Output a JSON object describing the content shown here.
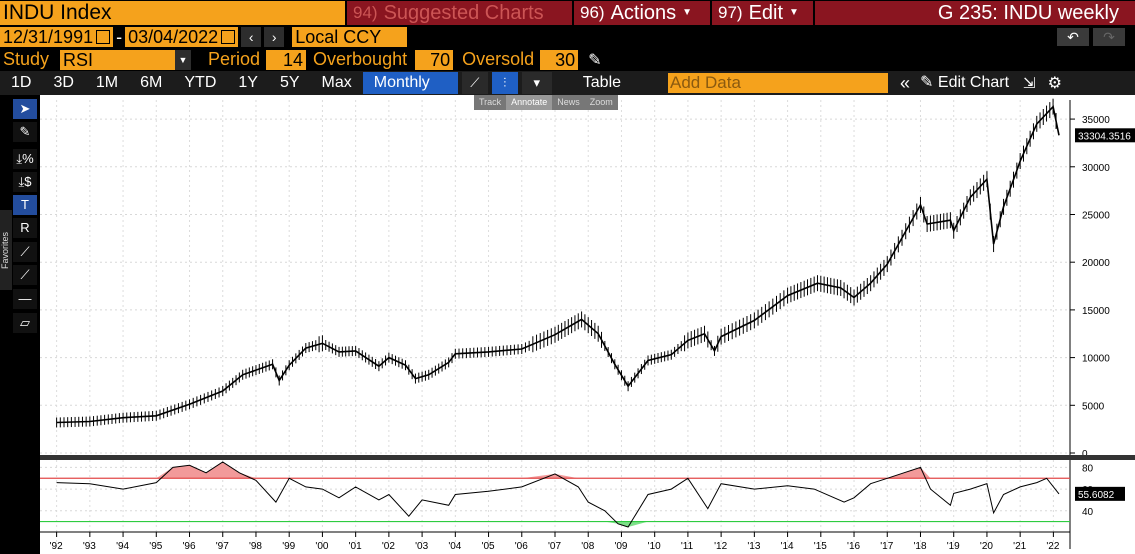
{
  "header": {
    "ticker": "INDU Index",
    "buttons": [
      {
        "num": "94)",
        "label": "Suggested Charts"
      },
      {
        "num": "96)",
        "label": "Actions"
      },
      {
        "num": "97)",
        "label": "Edit"
      }
    ],
    "page_title": "G 235: INDU weekly"
  },
  "dates": {
    "start": "12/31/1991",
    "sep": "-",
    "end": "03/04/2022",
    "currency": "Local CCY"
  },
  "study": {
    "label": "Study",
    "value": "RSI",
    "period_label": "Period",
    "period": "14",
    "overbought_label": "Overbought",
    "overbought": "70",
    "oversold_label": "Oversold",
    "oversold": "30"
  },
  "toolbar": {
    "ranges": [
      "1D",
      "3D",
      "1M",
      "6M",
      "YTD",
      "1Y",
      "5Y",
      "Max"
    ],
    "frequency": "Monthly",
    "table_label": "Table",
    "add_data_placeholder": "Add Data",
    "edit_chart_label": "Edit Chart"
  },
  "overlay_tools": [
    "Track",
    "Annotate",
    "News",
    "Zoom"
  ],
  "sidebar": {
    "favorites_label": "Favorites"
  },
  "colors": {
    "accent": "#f5a21c",
    "red": "#8a1520",
    "blue": "#1f5fc4",
    "rsi_over": "#e34a4a",
    "rsi_under": "#2ecc40"
  },
  "chart_data": [
    {
      "type": "line",
      "title": "",
      "ylim": [
        0,
        37000
      ],
      "y_ticks": [
        "0",
        "5000",
        "10000",
        "15000",
        "20000",
        "25000",
        "30000",
        "35000"
      ],
      "last_value_label": "33304.3516",
      "x_tick_labels": [
        "'92",
        "'93",
        "'94",
        "'95",
        "'96",
        "'97",
        "'98",
        "'99",
        "'00",
        "'01",
        "'02",
        "'03",
        "'04",
        "'05",
        "'06",
        "'07",
        "'08",
        "'09",
        "'10",
        "'11",
        "'12",
        "'13",
        "'14",
        "'15",
        "'16",
        "'17",
        "'18",
        "'19",
        "'20",
        "'21",
        "'22"
      ],
      "series": [
        {
          "x": [
            1992.0,
            1993.0,
            1994.0,
            1995.0,
            1996.0,
            1997.0,
            1997.6,
            1998.5,
            1998.7,
            1999.0,
            1999.5,
            2000.0,
            2000.5,
            2001.0,
            2001.7,
            2002.0,
            2002.5,
            2002.8,
            2003.2,
            2003.8,
            2004.0,
            2005.0,
            2006.0,
            2007.0,
            2007.8,
            2008.3,
            2008.8,
            2009.2,
            2009.8,
            2010.5,
            2011.0,
            2011.5,
            2011.8,
            2012.0,
            2013.0,
            2014.0,
            2014.9,
            2015.6,
            2016.0,
            2016.5,
            2017.0,
            2018.0,
            2018.2,
            2018.9,
            2019.0,
            2019.5,
            2020.0,
            2020.2,
            2020.5,
            2020.9,
            2021.0,
            2021.5,
            2021.99,
            2022.17
          ],
          "y": [
            3200,
            3300,
            3700,
            3900,
            5100,
            6500,
            8200,
            9300,
            7600,
            9200,
            11000,
            11500,
            10600,
            10700,
            9100,
            10000,
            9200,
            7800,
            8200,
            9500,
            10400,
            10600,
            10900,
            12400,
            14000,
            12500,
            9300,
            7000,
            9700,
            10300,
            11800,
            12500,
            10700,
            12200,
            13900,
            16500,
            17800,
            17300,
            16300,
            17800,
            19800,
            26000,
            24000,
            24400,
            23300,
            26800,
            28700,
            21900,
            25800,
            29600,
            30600,
            34500,
            36300,
            33300
          ]
        }
      ]
    },
    {
      "type": "line",
      "title": "",
      "ylim": [
        25,
        85
      ],
      "y_ticks": [
        "40",
        "60",
        "80"
      ],
      "last_value_label": "55.6082",
      "overbought": 70,
      "oversold": 30,
      "series": [
        {
          "x": [
            1992.0,
            1993.0,
            1994.0,
            1995.0,
            1995.5,
            1996.0,
            1996.5,
            1997.0,
            1997.5,
            1998.0,
            1998.6,
            1999.0,
            1999.5,
            2000.0,
            2000.5,
            2001.0,
            2001.7,
            2002.0,
            2002.6,
            2003.0,
            2003.8,
            2004.0,
            2005.0,
            2006.0,
            2007.0,
            2007.7,
            2008.0,
            2008.5,
            2008.9,
            2009.2,
            2009.8,
            2010.5,
            2011.0,
            2011.6,
            2012.0,
            2013.0,
            2014.0,
            2014.8,
            2015.7,
            2016.0,
            2016.5,
            2017.0,
            2017.5,
            2018.0,
            2018.3,
            2018.9,
            2019.0,
            2019.5,
            2020.0,
            2020.2,
            2020.5,
            2021.0,
            2021.5,
            2021.8,
            2022.17
          ],
          "y": [
            66,
            65,
            60,
            66,
            80,
            82,
            75,
            85,
            75,
            68,
            48,
            70,
            62,
            60,
            52,
            62,
            50,
            55,
            35,
            50,
            45,
            55,
            58,
            62,
            74,
            62,
            48,
            40,
            28,
            25,
            55,
            60,
            70,
            42,
            65,
            60,
            63,
            60,
            48,
            52,
            65,
            70,
            75,
            80,
            60,
            45,
            56,
            60,
            65,
            38,
            55,
            62,
            66,
            70,
            55.6
          ]
        }
      ]
    }
  ]
}
